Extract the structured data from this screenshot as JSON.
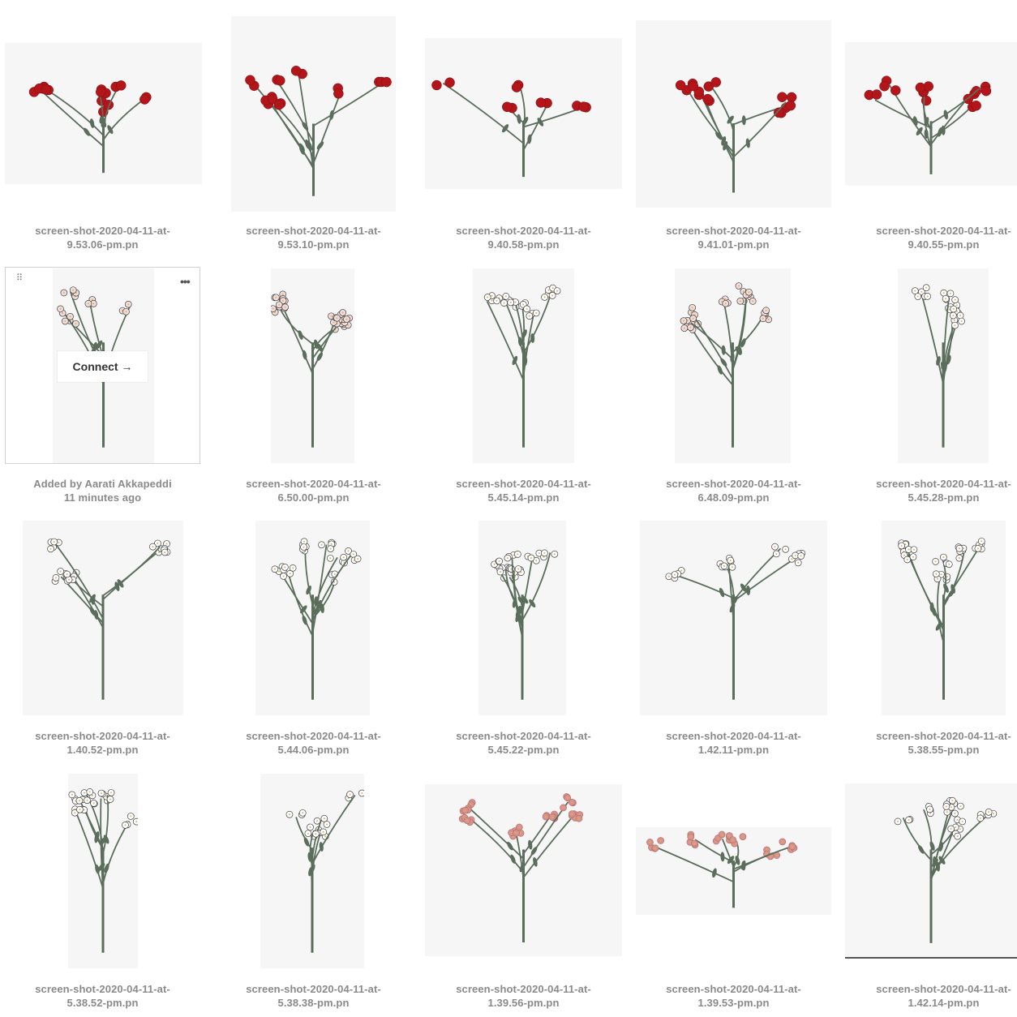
{
  "grid": {
    "rows": [
      [
        {
          "caption": [
            "screen-shot-2020-04-11-at-",
            "9.53.06-pm.pn"
          ],
          "style": "red"
        },
        {
          "caption": [
            "screen-shot-2020-04-11-at-",
            "9.53.10-pm.pn"
          ],
          "style": "red"
        },
        {
          "caption": [
            "screen-shot-2020-04-11-at-",
            "9.40.58-pm.pn"
          ],
          "style": "red"
        },
        {
          "caption": [
            "screen-shot-2020-04-11-at-",
            "9.41.01-pm.pn"
          ],
          "style": "red"
        },
        {
          "caption": [
            "screen-shot-2020-04-11-at-",
            "9.40.55-pm.pn"
          ],
          "style": "red"
        }
      ],
      [
        {
          "caption": [
            "Added by Aarati Akkapeddi",
            "11 minutes ago"
          ],
          "style": "pale",
          "hover": true
        },
        {
          "caption": [
            "screen-shot-2020-04-11-at-",
            "6.50.00-pm.pn"
          ],
          "style": "pale"
        },
        {
          "caption": [
            "screen-shot-2020-04-11-at-",
            "5.45.14-pm.pn"
          ],
          "style": "white"
        },
        {
          "caption": [
            "screen-shot-2020-04-11-at-",
            "6.48.09-pm.pn"
          ],
          "style": "pale"
        },
        {
          "caption": [
            "screen-shot-2020-04-11-at-",
            "5.45.28-pm.pn"
          ],
          "style": "white"
        }
      ],
      [
        {
          "caption": [
            "screen-shot-2020-04-11-at-",
            "1.40.52-pm.pn"
          ],
          "style": "white"
        },
        {
          "caption": [
            "screen-shot-2020-04-11-at-",
            "5.44.06-pm.pn"
          ],
          "style": "white"
        },
        {
          "caption": [
            "screen-shot-2020-04-11-at-",
            "5.45.22-pm.pn"
          ],
          "style": "white"
        },
        {
          "caption": [
            "screen-shot-2020-04-11-at-",
            "1.42.11-pm.pn"
          ],
          "style": "white"
        },
        {
          "caption": [
            "screen-shot-2020-04-11-at-",
            "5.38.55-pm.pn"
          ],
          "style": "white"
        }
      ],
      [
        {
          "caption": [
            "screen-shot-2020-04-11-at-",
            "5.38.52-pm.pn"
          ],
          "style": "white"
        },
        {
          "caption": [
            "screen-shot-2020-04-11-at-",
            "5.38.38-pm.pn"
          ],
          "style": "white"
        },
        {
          "caption": [
            "screen-shot-2020-04-11-at-",
            "1.39.56-pm.pn"
          ],
          "style": "pink"
        },
        {
          "caption": [
            "screen-shot-2020-04-11-at-",
            "1.39.53-pm.pn"
          ],
          "style": "pink"
        },
        {
          "caption": [
            "screen-shot-2020-04-11-at-",
            "1.42.14-pm.pn"
          ],
          "style": "white"
        }
      ]
    ]
  },
  "hover_card": {
    "connect_label": "Connect →",
    "drag_icon": "drag-handle-icon",
    "more_icon": "more-options-icon"
  },
  "colors": {
    "stem": "#5b6e5c",
    "red": "#b3161a",
    "pale": "#f1dcdc",
    "white": "#ffffff",
    "pink": "#d9938e",
    "caption": "#8a8a8a",
    "thumb_bg": "#f6f6f6"
  }
}
